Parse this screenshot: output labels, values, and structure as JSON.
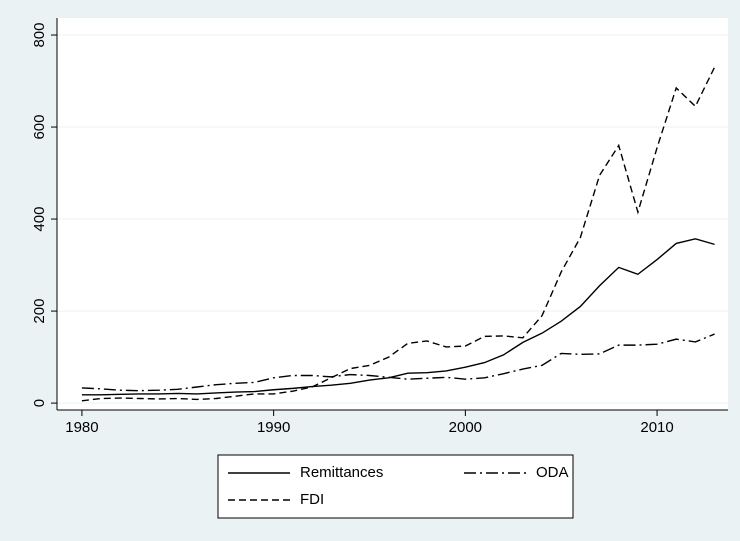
{
  "chart_data": {
    "type": "line",
    "x": [
      1980,
      1981,
      1982,
      1983,
      1984,
      1985,
      1986,
      1987,
      1988,
      1989,
      1990,
      1991,
      1992,
      1993,
      1994,
      1995,
      1996,
      1997,
      1998,
      1999,
      2000,
      2001,
      2002,
      2003,
      2004,
      2005,
      2006,
      2007,
      2008,
      2009,
      2010,
      2011,
      2012,
      2013
    ],
    "series": [
      {
        "name": "Remittances",
        "color": "#000000",
        "dash": "none",
        "values": [
          18,
          18,
          19,
          20,
          20,
          21,
          20,
          22,
          24,
          25,
          29,
          32,
          36,
          39,
          43,
          50,
          55,
          65,
          66,
          70,
          78,
          88,
          105,
          132,
          152,
          178,
          210,
          255,
          295,
          280,
          312,
          347,
          357,
          345
        ]
      },
      {
        "name": "ODA",
        "color": "#000000",
        "dash": "12,4,2,4",
        "values": [
          33,
          31,
          28,
          27,
          28,
          30,
          35,
          40,
          43,
          45,
          55,
          60,
          60,
          57,
          62,
          60,
          56,
          52,
          54,
          56,
          52,
          55,
          64,
          74,
          82,
          108,
          106,
          107,
          126,
          126,
          128,
          139,
          133,
          150
        ]
      },
      {
        "name": "FDI",
        "color": "#000000",
        "dash": "7,4",
        "values": [
          5,
          10,
          11,
          10,
          9,
          10,
          8,
          10,
          15,
          20,
          20,
          26,
          35,
          55,
          75,
          82,
          100,
          130,
          135,
          122,
          124,
          145,
          146,
          142,
          190,
          285,
          360,
          495,
          560,
          415,
          555,
          685,
          645,
          730
        ]
      }
    ],
    "xlim": [
      1978.7,
      2013.7
    ],
    "xticks": [
      1980,
      1990,
      2000,
      2010
    ],
    "ylim": [
      -15,
      837
    ],
    "yticks": [
      0,
      200,
      400,
      600,
      800
    ],
    "grid": true
  }
}
